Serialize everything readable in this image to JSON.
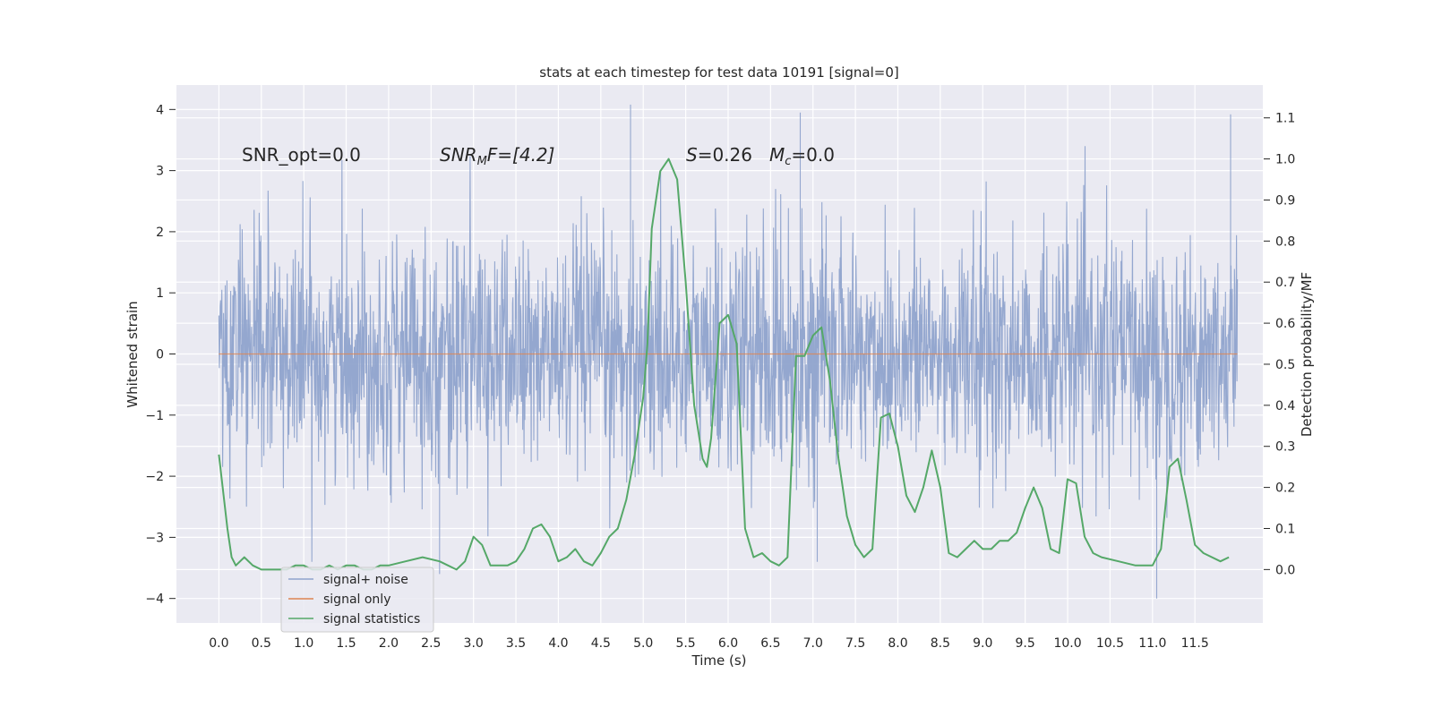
{
  "chart_data": {
    "type": "line",
    "title": "stats at each timestep for test data 10191 [signal=0]",
    "xlabel": "Time (s)",
    "ylabel": "Whitened strain",
    "y2label": "Detection probability/MF",
    "xlim": [
      -0.5,
      12.3
    ],
    "ylim": [
      -4.4,
      4.4
    ],
    "y2lim": [
      -0.13,
      1.18
    ],
    "xticks": [
      "0.0",
      "0.5",
      "1.0",
      "1.5",
      "2.0",
      "2.5",
      "3.0",
      "3.5",
      "4.0",
      "4.5",
      "5.0",
      "5.5",
      "6.0",
      "6.5",
      "7.0",
      "7.5",
      "8.0",
      "8.5",
      "9.0",
      "9.5",
      "10.0",
      "10.5",
      "11.0",
      "11.5"
    ],
    "yticks": [
      "4",
      "3",
      "2",
      "1",
      "0",
      "−1",
      "−2",
      "−3",
      "−4"
    ],
    "y2ticks": [
      "1.1",
      "1.0",
      "0.9",
      "0.8",
      "0.7",
      "0.6",
      "0.5",
      "0.4",
      "0.3",
      "0.2",
      "0.1",
      "0.0"
    ],
    "grid": true,
    "legend_position": "lower-left",
    "annotations": {
      "snr_opt": "SNR_opt=0.0",
      "snr_mf_main": "SNR",
      "snr_mf_sub": "M",
      "snr_mf_rest": "F=[4.2]",
      "s_italic": "S",
      "s_value": "=0.26",
      "mc_main": "M",
      "mc_sub": "c",
      "mc_value": "=0.0"
    },
    "series": [
      {
        "name": "signal+ noise",
        "color": "#8fa3cc",
        "description_of_values": "whitened noise samples, |y| mostly < 2.5",
        "envelope": {
          "x_range": [
            0.0,
            12.0
          ],
          "upper_typical": 2.3,
          "lower_typical": -2.3,
          "spikes": [
            {
              "x": 4.85,
              "y": 4.08
            },
            {
              "x": 11.92,
              "y": 3.92
            },
            {
              "x": 6.85,
              "y": 3.95
            },
            {
              "x": 11.05,
              "y": -4.0
            },
            {
              "x": 2.6,
              "y": -3.6
            },
            {
              "x": 7.05,
              "y": -3.4
            }
          ]
        }
      },
      {
        "name": "signal only",
        "color": "#dd8452",
        "x": [
          0.0,
          12.0
        ],
        "y": [
          0.0,
          0.0
        ]
      },
      {
        "name": "signal statistics",
        "color": "#55a868",
        "axis": "right",
        "x": [
          0.0,
          0.1,
          0.15,
          0.2,
          0.3,
          0.4,
          0.5,
          0.6,
          0.8,
          0.9,
          1.0,
          1.1,
          1.2,
          1.3,
          1.4,
          1.5,
          1.6,
          1.7,
          1.8,
          1.9,
          2.0,
          2.2,
          2.4,
          2.6,
          2.7,
          2.8,
          2.9,
          3.0,
          3.1,
          3.2,
          3.4,
          3.5,
          3.6,
          3.7,
          3.8,
          3.9,
          4.0,
          4.1,
          4.2,
          4.3,
          4.4,
          4.5,
          4.6,
          4.7,
          4.8,
          4.9,
          5.0,
          5.05,
          5.1,
          5.2,
          5.3,
          5.4,
          5.5,
          5.6,
          5.7,
          5.75,
          5.8,
          5.9,
          6.0,
          6.1,
          6.2,
          6.3,
          6.4,
          6.5,
          6.6,
          6.7,
          6.8,
          6.9,
          7.0,
          7.1,
          7.2,
          7.3,
          7.4,
          7.5,
          7.6,
          7.7,
          7.8,
          7.9,
          8.0,
          8.1,
          8.2,
          8.3,
          8.4,
          8.5,
          8.6,
          8.7,
          8.8,
          8.9,
          9.0,
          9.1,
          9.2,
          9.3,
          9.4,
          9.5,
          9.6,
          9.7,
          9.8,
          9.9,
          10.0,
          10.1,
          10.2,
          10.3,
          10.4,
          10.6,
          10.8,
          11.0,
          11.1,
          11.2,
          11.3,
          11.4,
          11.5,
          11.6,
          11.8,
          11.9
        ],
        "y": [
          0.28,
          0.1,
          0.03,
          0.01,
          0.03,
          0.01,
          0.0,
          0.0,
          0.0,
          0.01,
          0.01,
          0.0,
          0.0,
          0.01,
          0.0,
          0.01,
          0.01,
          0.0,
          0.0,
          0.01,
          0.01,
          0.02,
          0.03,
          0.02,
          0.01,
          0.0,
          0.02,
          0.08,
          0.06,
          0.01,
          0.01,
          0.02,
          0.05,
          0.1,
          0.11,
          0.08,
          0.02,
          0.03,
          0.05,
          0.02,
          0.01,
          0.04,
          0.08,
          0.1,
          0.17,
          0.28,
          0.42,
          0.55,
          0.83,
          0.97,
          1.0,
          0.95,
          0.7,
          0.4,
          0.27,
          0.25,
          0.32,
          0.6,
          0.62,
          0.55,
          0.1,
          0.03,
          0.04,
          0.02,
          0.01,
          0.03,
          0.52,
          0.52,
          0.57,
          0.59,
          0.46,
          0.27,
          0.13,
          0.06,
          0.03,
          0.05,
          0.37,
          0.38,
          0.3,
          0.18,
          0.14,
          0.2,
          0.29,
          0.2,
          0.04,
          0.03,
          0.05,
          0.07,
          0.05,
          0.05,
          0.07,
          0.07,
          0.09,
          0.15,
          0.2,
          0.15,
          0.05,
          0.04,
          0.22,
          0.21,
          0.08,
          0.04,
          0.03,
          0.02,
          0.01,
          0.01,
          0.05,
          0.25,
          0.27,
          0.17,
          0.06,
          0.04,
          0.02,
          0.03
        ]
      }
    ]
  }
}
